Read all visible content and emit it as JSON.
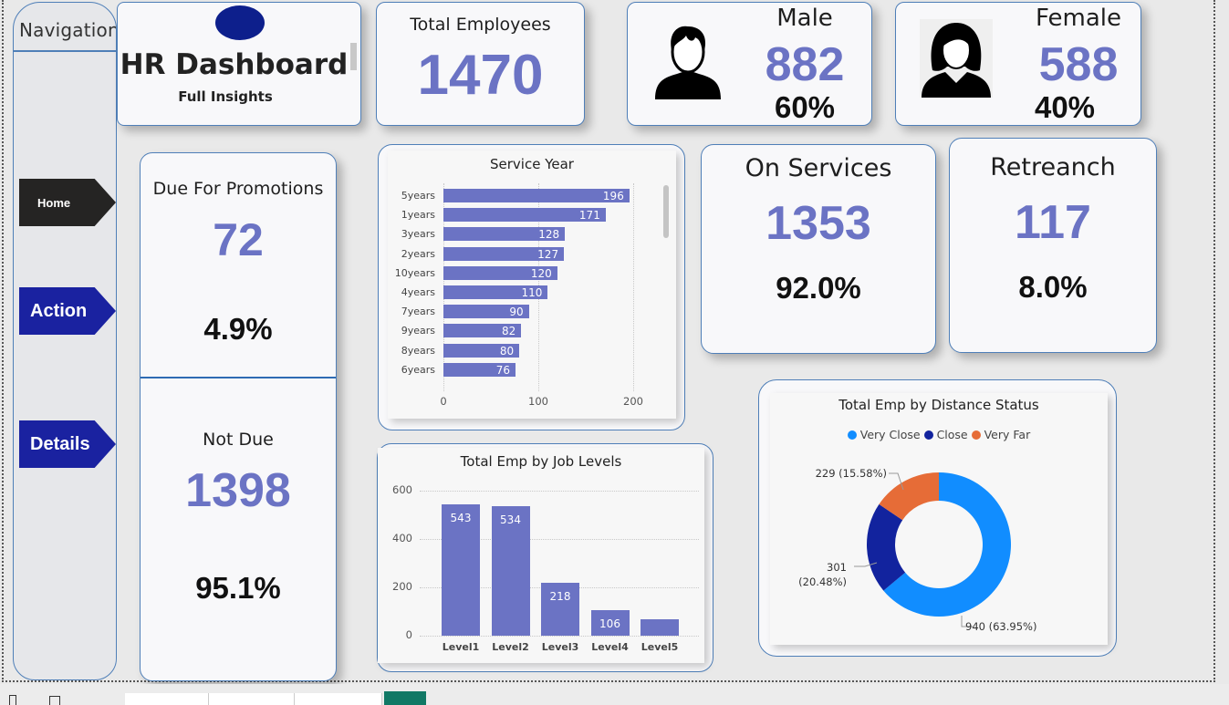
{
  "navigation": {
    "title": "Navigation",
    "buttons": [
      {
        "label": "Home",
        "color": "#252423"
      },
      {
        "label": "Action",
        "color": "#1a22a0"
      },
      {
        "label": "Details",
        "color": "#1a22a0"
      }
    ]
  },
  "header": {
    "title": "HR Dashboard",
    "subtitle": "Full Insights",
    "logo_color": "#0d1f8c"
  },
  "kpis": {
    "total_employees": {
      "label": "Total Employees",
      "value": "1470"
    },
    "male": {
      "label": "Male",
      "value": "882",
      "pct": "60%"
    },
    "female": {
      "label": "Female",
      "value": "588",
      "pct": "40%"
    },
    "due_promotions": {
      "label": "Due For Promotions",
      "value": "72",
      "pct": "4.9%"
    },
    "not_due": {
      "label": "Not Due",
      "value": "1398",
      "pct": "95.1%"
    },
    "on_services": {
      "label": "On Services",
      "value": "1353",
      "pct": "92.0%"
    },
    "retreanch": {
      "label": "Retreanch",
      "value": "117",
      "pct": "8.0%"
    }
  },
  "colors": {
    "accent_value": "#6b73c4",
    "bar": "#6b73c4",
    "very_close": "#118dff",
    "close": "#12239e",
    "very_far": "#e66c37"
  },
  "chart_data": [
    {
      "type": "bar",
      "orientation": "horizontal",
      "title": "Service Year",
      "categories": [
        "5years",
        "1years",
        "3years",
        "2years",
        "10years",
        "4years",
        "7years",
        "9years",
        "8years",
        "6years"
      ],
      "values": [
        196,
        171,
        128,
        127,
        120,
        110,
        90,
        82,
        80,
        76
      ],
      "xlim": [
        0,
        200
      ],
      "xticks": [
        "0",
        "100",
        "200"
      ],
      "grid": true
    },
    {
      "type": "bar",
      "orientation": "vertical",
      "title": "Total Emp by Job Levels",
      "categories": [
        "Level1",
        "Level2",
        "Level3",
        "Level4",
        "Level5"
      ],
      "values": [
        543,
        534,
        218,
        106,
        69
      ],
      "data_labels": [
        "543",
        "534",
        "218",
        "106",
        ""
      ],
      "ylim": [
        0,
        600
      ],
      "yticks": [
        "0",
        "200",
        "400",
        "600"
      ],
      "grid": true
    },
    {
      "type": "pie",
      "donut": true,
      "title": "Total Emp by Distance Status",
      "legend": [
        "Very Close",
        "Close",
        "Very Far"
      ],
      "legend_position": "top",
      "values": [
        940,
        301,
        229
      ],
      "labels": [
        "940 (63.95%)",
        "301 (20.48%)",
        "229 (15.58%)"
      ]
    }
  ]
}
